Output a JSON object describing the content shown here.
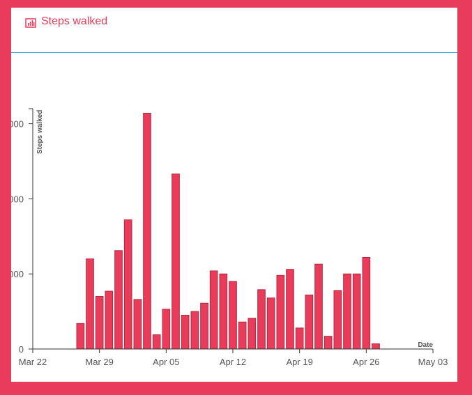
{
  "panel": {
    "title": "Steps walked",
    "title_icon": "bar-chart-icon"
  },
  "colors": {
    "background": "#e83c5a",
    "accent": "#e83c5a",
    "bar_fill": "#e83c5a",
    "bar_stroke": "#b5283f",
    "header_rule": "#2a9fd6"
  },
  "chart_data": {
    "type": "bar",
    "xlabel": "Date",
    "ylabel": "Steps walked",
    "x_axis": {
      "type": "date",
      "domain": [
        "2020-03-22",
        "2020-05-03"
      ],
      "ticks": [
        "Mar 22",
        "Mar 29",
        "Apr 05",
        "Apr 12",
        "Apr 19",
        "Apr 26",
        "May 03"
      ]
    },
    "y_axis": {
      "range": [
        0,
        16000
      ],
      "tick_values": [
        0,
        5000,
        10000,
        15000
      ],
      "tick_labels": [
        "0",
        "000",
        "000",
        "000"
      ]
    },
    "grid": false,
    "x": [
      "2020-03-27",
      "2020-03-28",
      "2020-03-29",
      "2020-03-30",
      "2020-03-31",
      "2020-04-01",
      "2020-04-02",
      "2020-04-03",
      "2020-04-04",
      "2020-04-05",
      "2020-04-06",
      "2020-04-07",
      "2020-04-08",
      "2020-04-09",
      "2020-04-10",
      "2020-04-11",
      "2020-04-12",
      "2020-04-13",
      "2020-04-14",
      "2020-04-15",
      "2020-04-16",
      "2020-04-17",
      "2020-04-18",
      "2020-04-19",
      "2020-04-20",
      "2020-04-21",
      "2020-04-22",
      "2020-04-23",
      "2020-04-24",
      "2020-04-25",
      "2020-04-26",
      "2020-04-27"
    ],
    "values": [
      1700,
      6000,
      3500,
      3850,
      6550,
      8600,
      3300,
      15700,
      950,
      2650,
      11650,
      2250,
      2500,
      3050,
      5200,
      5000,
      4500,
      1800,
      2050,
      3950,
      3400,
      4900,
      5300,
      1400,
      3600,
      5650,
      850,
      3900,
      5000,
      5000,
      6100,
      350
    ]
  }
}
